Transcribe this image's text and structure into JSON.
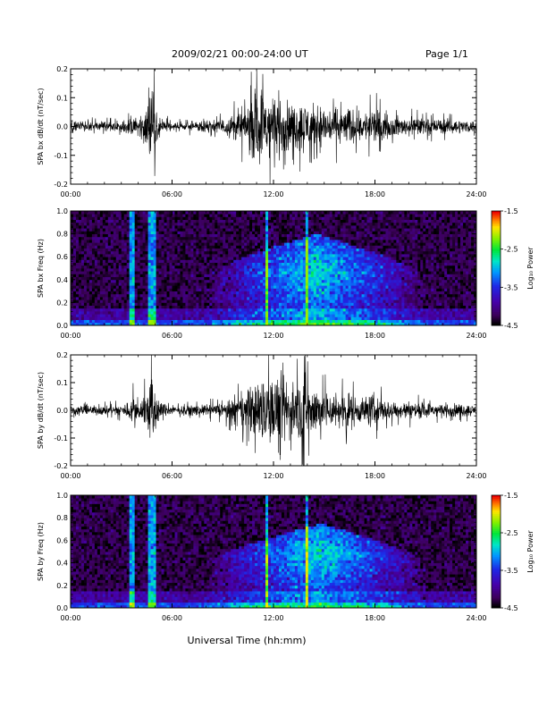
{
  "header": {
    "title": "2009/02/21  00:00-24:00 UT",
    "page_label": "Page 1/1"
  },
  "chart_data": [
    {
      "type": "line",
      "ylabel": "SPA bx dB/dt (nT/sec)",
      "xlim": [
        0,
        24
      ],
      "ylim": [
        -0.2,
        0.2
      ],
      "xtick_labels": [
        "00:00",
        "06:00",
        "12:00",
        "18:00",
        "24:00"
      ],
      "ytick_labels": [
        "-0.2",
        "-0.1",
        "0.0",
        "0.1",
        "0.2"
      ],
      "grid": false,
      "series": [
        {
          "color": "#000000",
          "envelope": {
            "t": [
              0,
              1,
              2,
              3,
              3.5,
              3.7,
              4.0,
              4.6,
              4.8,
              4.95,
              5.1,
              5.4,
              6,
              7,
              8,
              9,
              9.5,
              10,
              10.5,
              11,
              11.5,
              12,
              12.3,
              12.8,
              13.2,
              13.8,
              14.2,
              14.6,
              15,
              15.5,
              16,
              16.5,
              17,
              17.5,
              18,
              18.5,
              19,
              20,
              21,
              22,
              23,
              24
            ],
            "amp": [
              0.03,
              0.025,
              0.025,
              0.03,
              0.05,
              0.08,
              0.04,
              0.14,
              0.2,
              0.2,
              0.09,
              0.04,
              0.02,
              0.025,
              0.03,
              0.04,
              0.06,
              0.09,
              0.12,
              0.2,
              0.2,
              0.2,
              0.17,
              0.13,
              0.11,
              0.14,
              0.11,
              0.13,
              0.1,
              0.11,
              0.09,
              0.1,
              0.07,
              0.08,
              0.1,
              0.06,
              0.05,
              0.05,
              0.04,
              0.04,
              0.035,
              0.03
            ]
          }
        }
      ]
    },
    {
      "type": "heatmap",
      "ylabel": "SPA bx Freq (Hz)",
      "xlim": [
        0,
        24
      ],
      "ylim": [
        0,
        1.0
      ],
      "xtick_labels": [
        "00:00",
        "06:00",
        "12:00",
        "18:00",
        "24:00"
      ],
      "ytick_labels": [
        "0.0",
        "0.2",
        "0.4",
        "0.6",
        "0.8",
        "1.0"
      ],
      "colorbar": {
        "label": "Log₁₀ Power",
        "range": [
          -4.5,
          -1.5
        ],
        "tick_labels": [
          "-1.5",
          "-2.5",
          "-3.5",
          "-4.5"
        ]
      },
      "features": {
        "vertical_streaks_hours": [
          3.6,
          4.7,
          4.9,
          11.6,
          14.0
        ],
        "broadband_region": {
          "start_hour": 8,
          "peak_hour": 14.5,
          "end_hour": 21,
          "peak_freq_hz": 0.45,
          "max_freq_hz": 0.8
        },
        "peak_log_power": -2.2
      }
    },
    {
      "type": "line",
      "ylabel": "SPA by dB/dt (nT/sec)",
      "xlim": [
        0,
        24
      ],
      "ylim": [
        -0.2,
        0.2
      ],
      "xtick_labels": [
        "00:00",
        "06:00",
        "12:00",
        "18:00",
        "24:00"
      ],
      "ytick_labels": [
        "-0.2",
        "-0.1",
        "0.0",
        "0.1",
        "0.2"
      ],
      "grid": false,
      "series": [
        {
          "color": "#000000",
          "envelope": {
            "t": [
              0,
              1,
              2,
              3,
              3.5,
              3.7,
              4.0,
              4.6,
              4.8,
              4.95,
              5.1,
              5.4,
              6,
              7,
              8,
              9,
              9.5,
              10,
              10.5,
              11,
              11.5,
              12,
              12.3,
              12.8,
              13.2,
              13.8,
              14.2,
              14.6,
              15,
              15.5,
              16,
              16.5,
              17,
              17.5,
              18,
              18.5,
              19,
              20,
              21,
              22,
              23,
              24
            ],
            "amp": [
              0.03,
              0.025,
              0.025,
              0.03,
              0.05,
              0.08,
              0.04,
              0.14,
              0.2,
              0.2,
              0.09,
              0.04,
              0.02,
              0.025,
              0.03,
              0.04,
              0.06,
              0.09,
              0.12,
              0.16,
              0.2,
              0.2,
              0.17,
              0.19,
              0.14,
              0.2,
              0.13,
              0.16,
              0.1,
              0.11,
              0.09,
              0.1,
              0.07,
              0.08,
              0.1,
              0.06,
              0.05,
              0.05,
              0.04,
              0.04,
              0.035,
              0.03
            ]
          }
        }
      ]
    },
    {
      "type": "heatmap",
      "ylabel": "SPA by Freq (Hz)",
      "xlim": [
        0,
        24
      ],
      "ylim": [
        0,
        1.0
      ],
      "xtick_labels": [
        "00:00",
        "06:00",
        "12:00",
        "18:00",
        "24:00"
      ],
      "ytick_labels": [
        "0.0",
        "0.2",
        "0.4",
        "0.6",
        "0.8",
        "1.0"
      ],
      "colorbar": {
        "label": "Log₁₀ Power",
        "range": [
          -4.5,
          -1.5
        ],
        "tick_labels": [
          "-1.5",
          "-2.5",
          "-3.5",
          "-4.5"
        ]
      },
      "features": {
        "vertical_streaks_hours": [
          3.6,
          4.7,
          4.9,
          11.6,
          14.0
        ],
        "broadband_region": {
          "start_hour": 8,
          "peak_hour": 14.8,
          "end_hour": 21,
          "peak_freq_hz": 0.47,
          "max_freq_hz": 0.75
        },
        "peak_log_power": -2.0
      }
    }
  ],
  "xaxis": {
    "label": "Universal Time (hh:mm)"
  }
}
